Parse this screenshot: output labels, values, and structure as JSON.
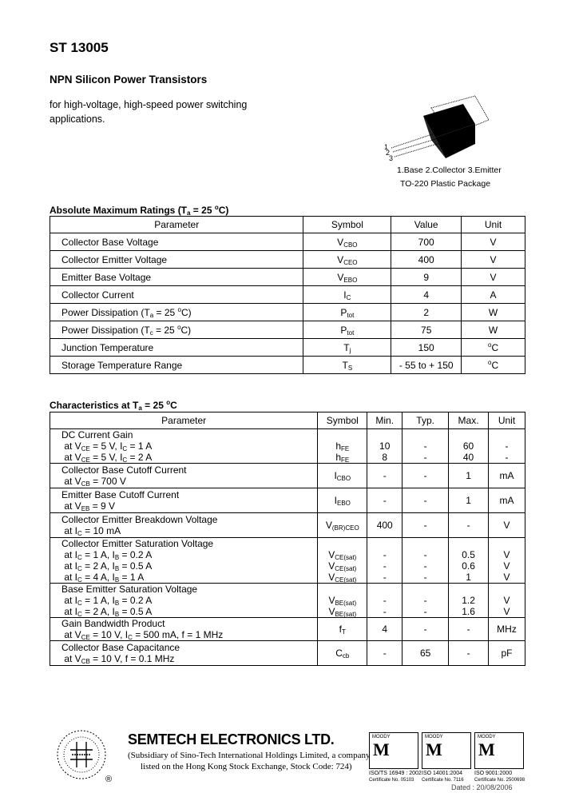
{
  "header": {
    "title": "ST 13005",
    "subtitle": "NPN Silicon Power Transistors",
    "description": "for high-voltage, high-speed power switching applications."
  },
  "package": {
    "pin_labels": [
      "1",
      "2",
      "3"
    ],
    "pinout": "1.Base 2.Collector 3.Emitter",
    "name": "TO-220 Plastic Package"
  },
  "ratings": {
    "title": "Absolute Maximum Ratings (T<sub>a</sub> = 25 <sup>o</sup>C)",
    "headers": [
      "Parameter",
      "Symbol",
      "Value",
      "Unit"
    ],
    "rows": [
      [
        "Collector Base Voltage",
        "V<sub>CBO</sub>",
        "700",
        "V"
      ],
      [
        "Collector Emitter Voltage",
        "V<sub>CEO</sub>",
        "400",
        "V"
      ],
      [
        "Emitter Base Voltage",
        "V<sub>EBO</sub>",
        "9",
        "V"
      ],
      [
        "Collector Current",
        "I<sub>C</sub>",
        "4",
        "A"
      ],
      [
        "Power Dissipation (T<sub>a</sub> = 25 <sup>o</sup>C)",
        "P<sub>tot</sub>",
        "2",
        "W"
      ],
      [
        "Power Dissipation (T<sub>c</sub> = 25 <sup>o</sup>C)",
        "P<sub>tot</sub>",
        "75",
        "W"
      ],
      [
        "Junction Temperature",
        "T<sub>j</sub>",
        "150",
        "<sup>o</sup>C"
      ],
      [
        "Storage Temperature Range",
        "T<sub>S</sub>",
        "- 55 to + 150",
        "<sup>o</sup>C"
      ]
    ]
  },
  "characteristics": {
    "title": "Characteristics at T<sub>a</sub> = 25 <sup>o</sup>C",
    "headers": [
      "Parameter",
      "Symbol",
      "Min.",
      "Typ.",
      "Max.",
      "Unit"
    ],
    "groups": [
      {
        "h": 42,
        "param": [
          "DC Current Gain",
          "at V<sub>CE</sub> = 5 V, I<sub>C</sub> = 1 A",
          "at V<sub>CE</sub> = 5 V, I<sub>C</sub> = 2 A"
        ],
        "symbol": [
          "h<sub>FE</sub>",
          "h<sub>FE</sub>"
        ],
        "min": [
          "10",
          "8"
        ],
        "typ": [
          "-",
          "-"
        ],
        "max": [
          "60",
          "40"
        ],
        "unit": [
          "-",
          "-"
        ]
      },
      {
        "h": 31,
        "param": [
          "Collector Base Cutoff Current",
          "at V<sub>CB</sub> = 700 V"
        ],
        "symbol": [
          "I<sub>CBO</sub>"
        ],
        "min": [
          "-"
        ],
        "typ": [
          "-"
        ],
        "max": [
          "1"
        ],
        "unit": [
          "mA"
        ]
      },
      {
        "h": 31,
        "param": [
          "Emitter Base Cutoff Current",
          "at V<sub>EB</sub> = 9 V"
        ],
        "symbol": [
          "I<sub>EBO</sub>"
        ],
        "min": [
          "-"
        ],
        "typ": [
          "-"
        ],
        "max": [
          "1"
        ],
        "unit": [
          "mA"
        ]
      },
      {
        "h": 31,
        "param": [
          "Collector Emitter Breakdown Voltage",
          "at I<sub>C</sub> = 10 mA"
        ],
        "symbol": [
          "V<sub>(BR)CEO</sub>"
        ],
        "min": [
          "400"
        ],
        "typ": [
          "-"
        ],
        "max": [
          "-"
        ],
        "unit": [
          "V"
        ]
      },
      {
        "h": 57,
        "param": [
          "Collector Emitter Saturation Voltage",
          "at I<sub>C</sub> = 1 A, I<sub>B</sub> = 0.2 A",
          "at I<sub>C</sub> = 2 A, I<sub>B</sub> = 0.5 A",
          "at I<sub>C</sub> = 4 A, I<sub>B</sub> = 1 A"
        ],
        "symbol": [
          "V<sub>CE(sat)</sub>",
          "V<sub>CE(sat)</sub>",
          "V<sub>CE(sat)</sub>"
        ],
        "min": [
          "-",
          "-",
          "-"
        ],
        "typ": [
          "-",
          "-",
          "-"
        ],
        "max": [
          "0.5",
          "0.6",
          "1"
        ],
        "unit": [
          "V",
          "V",
          "V"
        ]
      },
      {
        "h": 43,
        "param": [
          "Base Emitter Saturation Voltage",
          "at I<sub>C</sub> = 1 A, I<sub>B</sub> = 0.2 A",
          "at I<sub>C</sub> = 2 A, I<sub>B</sub> = 0.5 A"
        ],
        "symbol": [
          "V<sub>BE(sat)</sub>",
          "V<sub>BE(sat)</sub>"
        ],
        "min": [
          "-",
          "-"
        ],
        "typ": [
          "-",
          "-"
        ],
        "max": [
          "1.2",
          "1.6"
        ],
        "unit": [
          "V",
          "V"
        ]
      },
      {
        "h": 29,
        "param": [
          "Gain Bandwidth Product",
          "at V<sub>CE</sub> = 10 V, I<sub>C</sub> = 500 mA, f = 1 MHz"
        ],
        "symbol": [
          "f<sub>T</sub>"
        ],
        "min": [
          "4"
        ],
        "typ": [
          "-"
        ],
        "max": [
          "-"
        ],
        "unit": [
          "MHz"
        ]
      },
      {
        "h": 31,
        "param": [
          "Collector Base Capacitance",
          "at V<sub>CB</sub> = 10 V, f = 0.1 MHz"
        ],
        "symbol": [
          "C<sub>cb</sub>"
        ],
        "min": [
          "-"
        ],
        "typ": [
          "65"
        ],
        "max": [
          "-"
        ],
        "unit": [
          "pF"
        ]
      }
    ]
  },
  "footer": {
    "company": "SEMTECH ELECTRONICS LTD.",
    "subsidiary_line1": "(Subsidiary of Sino-Tech International Holdings Limited, a company",
    "subsidiary_line2": "listed on the Hong Kong Stock Exchange, Stock Code: 724)",
    "registered_mark": "®",
    "certifications": [
      {
        "brand": "MOODY",
        "standard": "ISO/TS 16949 : 2002",
        "certificate": "Certificate No. 05103"
      },
      {
        "brand": "MOODY",
        "standard": "ISO 14001:2004",
        "certificate": "Certificate No. 7116"
      },
      {
        "brand": "MOODY",
        "standard": "ISO 9001:2000",
        "certificate": "Certificate No. 2500698"
      }
    ],
    "dated": "Dated : 20/08/2006"
  }
}
